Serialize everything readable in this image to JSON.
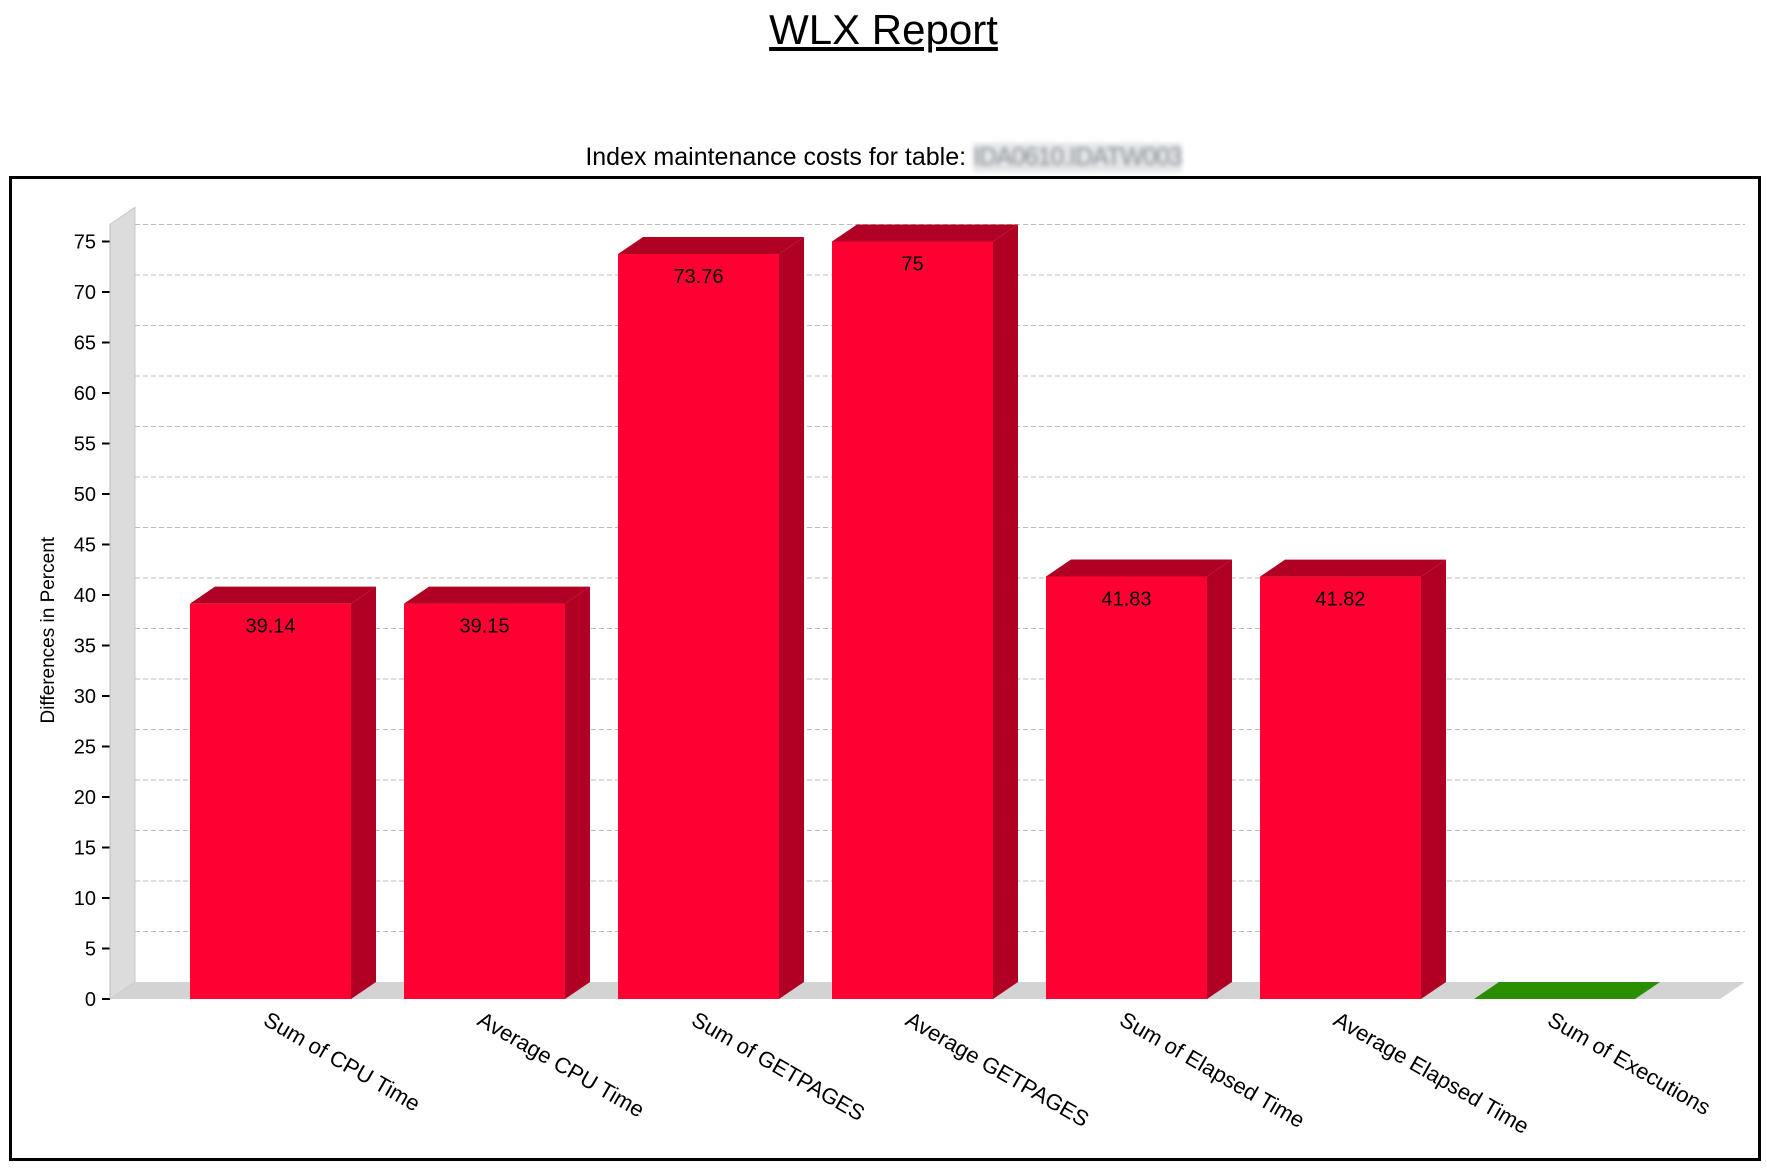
{
  "page": {
    "title": "WLX Report"
  },
  "chart_data": {
    "type": "bar",
    "title": "Index maintenance costs for table:",
    "table_name": "IDA0610.IDATW003",
    "xlabel": "",
    "ylabel": "Differences in Percent",
    "ylim": [
      0,
      75
    ],
    "yticks": [
      0,
      5,
      10,
      15,
      20,
      25,
      30,
      35,
      40,
      45,
      50,
      55,
      60,
      65,
      70,
      75
    ],
    "grid": true,
    "categories": [
      "Sum of CPU Time",
      "Average CPU Time",
      "Sum of GETPAGES",
      "Average GETPAGES",
      "Sum of Elapsed Time",
      "Average Elapsed Time",
      "Sum of Executions"
    ],
    "values": [
      39.14,
      39.15,
      73.76,
      75,
      41.83,
      41.82,
      0
    ],
    "value_labels": [
      "39.14",
      "39.15",
      "73.76",
      "75",
      "41.83",
      "41.82",
      ""
    ],
    "bar_colors": [
      "#FF0033",
      "#FF0033",
      "#FF0033",
      "#FF0033",
      "#FF0033",
      "#FF0033",
      "#2A8F00"
    ],
    "bar_side_colors": [
      "#B00024",
      "#B00024",
      "#B00024",
      "#B00024",
      "#B00024",
      "#B00024",
      "#1E6B00"
    ]
  }
}
